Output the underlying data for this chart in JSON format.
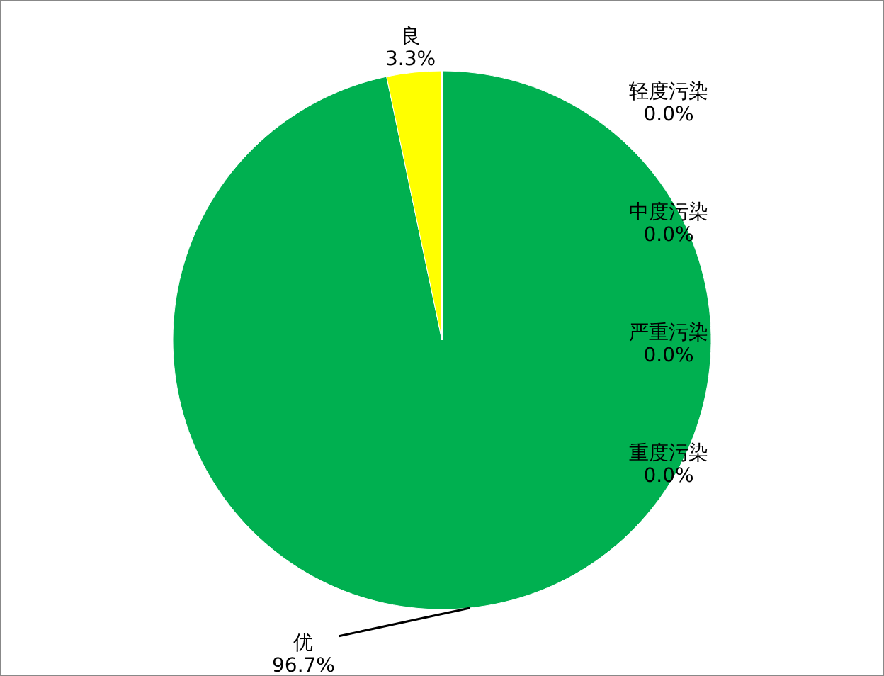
{
  "chart_data": {
    "type": "pie",
    "categories": [
      "优",
      "良",
      "轻度污染",
      "中度污染",
      "严重污染",
      "重度污染"
    ],
    "values": [
      96.7,
      3.3,
      0.0,
      0.0,
      0.0,
      0.0
    ],
    "value_labels": [
      "96.7%",
      "3.3%",
      "0.0%",
      "0.0%",
      "0.0%",
      "0.0%"
    ],
    "colors": [
      "#00b050",
      "#ffff00",
      "#ff7e00",
      "#ff0000",
      "#7e0023",
      "#99004c"
    ]
  }
}
